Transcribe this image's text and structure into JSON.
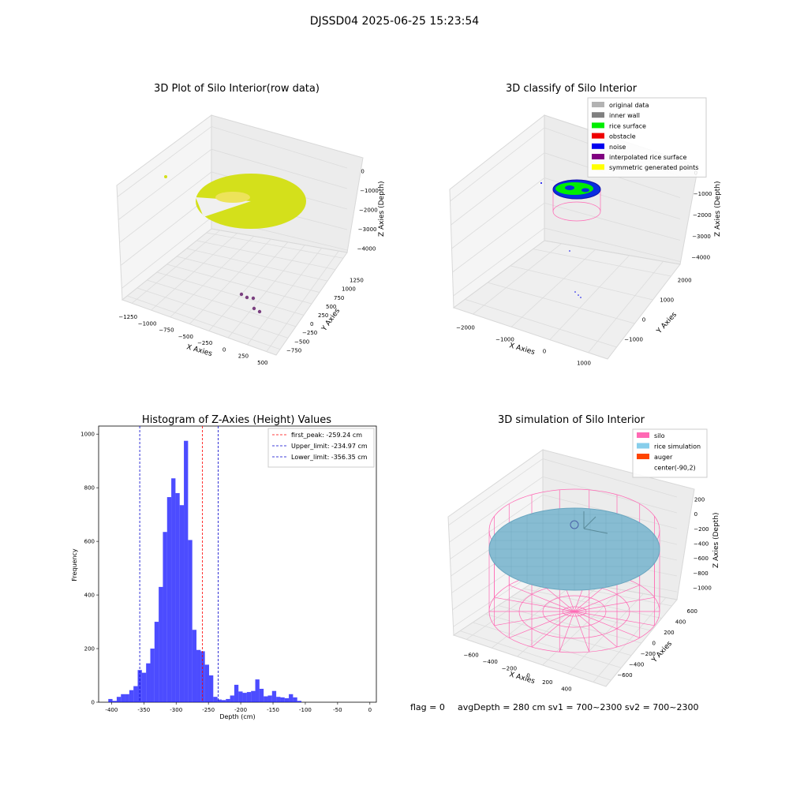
{
  "figure": {
    "suptitle": "DJSSD04 2025-06-25 15:23:54",
    "footer": {
      "flag": "flag = 0",
      "stats": "avgDepth = 280 cm  sv1 = 700~2300  sv2 = 700~2300"
    }
  },
  "chart_data": [
    {
      "type": "scatter",
      "title": "3D Plot of Silo Interior(row data)",
      "xlabel": "X Axies",
      "ylabel": "Y Axies",
      "zlabel": "Z Axies (Depth)",
      "x_ticks": [
        "−1250",
        "−1000",
        "−750",
        "−500",
        "−250",
        "0",
        "250",
        "500"
      ],
      "y_ticks": [
        "−750",
        "−500",
        "−250",
        "0",
        "250",
        "500",
        "750",
        "1000",
        "1250"
      ],
      "z_ticks": [
        "0",
        "−1000",
        "−2000",
        "−3000",
        "−4000"
      ],
      "colors": {
        "points": "#d4e01b",
        "outliers": "#7a3f7f"
      },
      "description_points": "yellow point cloud disk near z=-2000 plus a few purple outliers near the bottom"
    },
    {
      "type": "scatter",
      "title": "3D classify of Silo Interior",
      "xlabel": "X Axies",
      "ylabel": "Y Axies",
      "zlabel": "Z Axies (Depth)",
      "x_ticks": [
        "−2000",
        "−1000",
        "0",
        "1000"
      ],
      "y_ticks": [
        "−1000",
        "0",
        "1000",
        "2000"
      ],
      "z_ticks": [
        "0",
        "−1000",
        "−2000",
        "−3000",
        "−4000"
      ],
      "legend": [
        {
          "label": "original data",
          "color": "#b3b3b3"
        },
        {
          "label": "inner wall",
          "color": "#808080"
        },
        {
          "label": "rice surface",
          "color": "#00ee00"
        },
        {
          "label": "obstacle",
          "color": "#ee0000"
        },
        {
          "label": "noise",
          "color": "#0000ee"
        },
        {
          "label": "interpolated rice surface",
          "color": "#800080"
        },
        {
          "label": "symmetric generated points",
          "color": "#ffff00"
        }
      ]
    },
    {
      "type": "bar",
      "title": "Histogram of Z-Axies (Height) Values",
      "xlabel": "Depth (cm)",
      "ylabel": "Frequency",
      "xlim": [
        -420,
        10
      ],
      "ylim": [
        0,
        1030
      ],
      "x_ticks": [
        -400,
        -350,
        -300,
        -250,
        -200,
        -150,
        -100,
        -50,
        0
      ],
      "y_ticks": [
        0,
        200,
        400,
        600,
        800,
        1000
      ],
      "bin_start": -405,
      "bin_width": 6.5,
      "values": [
        12,
        5,
        20,
        30,
        30,
        45,
        60,
        120,
        110,
        145,
        200,
        300,
        430,
        635,
        765,
        835,
        780,
        735,
        975,
        605,
        270,
        195,
        190,
        140,
        100,
        20,
        10,
        8,
        12,
        25,
        65,
        40,
        35,
        38,
        42,
        85,
        50,
        22,
        25,
        42,
        20,
        18,
        15,
        30,
        18,
        5
      ],
      "bar_color": "#0000ff",
      "lines": [
        {
          "label": "first_peak: -259.24 cm",
          "x": -259.24,
          "color": "#ff0000"
        },
        {
          "label": "Upper_limit: -234.97 cm",
          "x": -234.97,
          "color": "#0000cc"
        },
        {
          "label": "Lower_limit: -356.35 cm",
          "x": -356.35,
          "color": "#0000cc"
        }
      ]
    },
    {
      "type": "scatter",
      "title": "3D simulation of Silo Interior",
      "xlabel": "X Axies",
      "ylabel": "Y Axies",
      "zlabel": "Z Axies (Depth)",
      "x_ticks": [
        "−600",
        "−400",
        "−200",
        "0",
        "200",
        "400"
      ],
      "y_ticks": [
        "−600",
        "−400",
        "−200",
        "0",
        "200",
        "400",
        "600"
      ],
      "z_ticks": [
        "200",
        "0",
        "−200",
        "−400",
        "−600",
        "−800",
        "−1000"
      ],
      "legend": [
        {
          "label": "silo",
          "color": "#ff69b4"
        },
        {
          "label": "rice simulation",
          "color": "#87ceeb"
        },
        {
          "label": "auger",
          "color": "#ff4500"
        },
        {
          "label": "center(-90,2)",
          "color": ""
        }
      ]
    }
  ]
}
